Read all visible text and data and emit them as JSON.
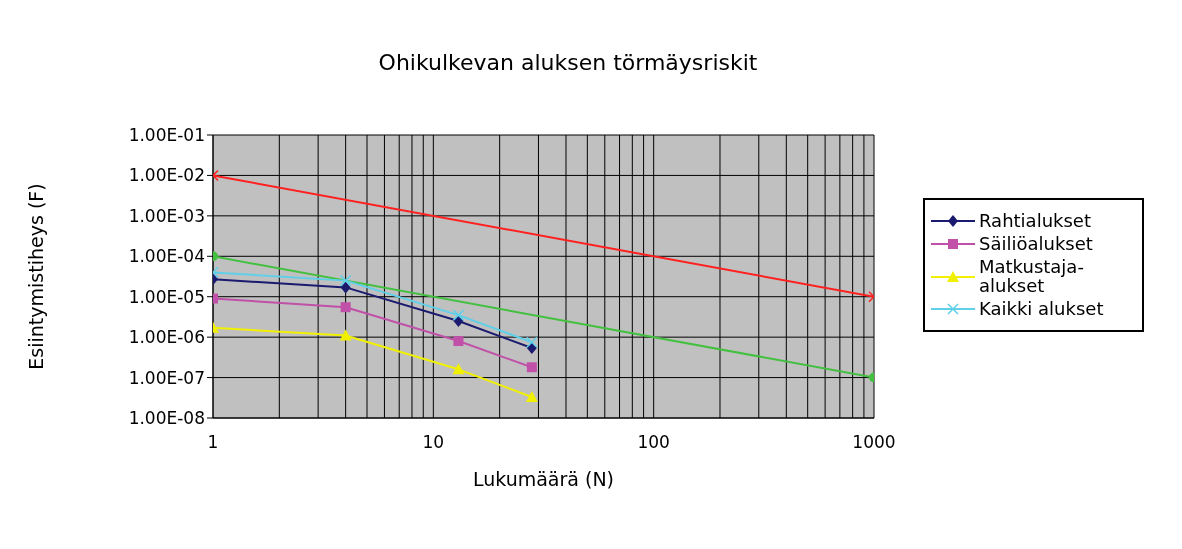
{
  "chart_data": {
    "type": "line",
    "title": "Ohikulkevan aluksen törmäysriskit",
    "xlabel": "Lukumäärä (N)",
    "ylabel": "Esiintymistiheys (F)",
    "log": "xy",
    "grid": true,
    "legend": "right",
    "xlim": [
      1,
      1000
    ],
    "xticks": [
      1,
      {
        "value": 2,
        "label": null
      },
      {
        "value": 3,
        "label": null
      },
      {
        "value": 4,
        "label": null
      },
      {
        "value": 5,
        "label": null
      },
      {
        "value": 6,
        "label": null
      },
      {
        "value": 7,
        "label": null
      },
      {
        "value": 8,
        "label": null
      },
      {
        "value": 9,
        "label": null
      },
      10,
      {
        "value": 20,
        "label": null
      },
      {
        "value": 30,
        "label": null
      },
      {
        "value": 40,
        "label": null
      },
      {
        "value": 50,
        "label": null
      },
      {
        "value": 60,
        "label": null
      },
      {
        "value": 70,
        "label": null
      },
      {
        "value": 80,
        "label": null
      },
      {
        "value": 90,
        "label": null
      },
      100,
      {
        "value": 200,
        "label": null
      },
      {
        "value": 300,
        "label": null
      },
      {
        "value": 400,
        "label": null
      },
      {
        "value": 500,
        "label": null
      },
      {
        "value": 600,
        "label": null
      },
      {
        "value": 700,
        "label": null
      },
      {
        "value": 800,
        "label": null
      },
      {
        "value": 900,
        "label": null
      },
      1000
    ],
    "ylim": [
      1e-08,
      0.1
    ],
    "yticks": [
      {
        "value": 1e-08,
        "label": "1.00E-08"
      },
      {
        "value": 1e-07,
        "label": "1.00E-07"
      },
      {
        "value": 1e-06,
        "label": "1.00E-06"
      },
      {
        "value": 1e-05,
        "label": "1.00E-05"
      },
      {
        "value": 0.0001,
        "label": "1.00E-04"
      },
      {
        "value": 0.001,
        "label": "1.00E-03"
      },
      {
        "value": 0.01,
        "label": "1.00E-02"
      },
      {
        "value": 0.1,
        "label": "1.00E-01"
      }
    ],
    "series": [
      {
        "color": "#ff2020",
        "marker": "cross",
        "x": [
          1,
          1000
        ],
        "values": [
          0.01,
          1e-05
        ]
      },
      {
        "color": "#44c040",
        "marker": "circle",
        "x": [
          1,
          1000
        ],
        "values": [
          0.0001,
          1e-07
        ]
      },
      {
        "name": "Rahtialukset",
        "color": "#1a1a6e",
        "marker": "diamond",
        "x": [
          1,
          4,
          13,
          28
        ],
        "values": [
          2.7e-05,
          1.7e-05,
          2.5e-06,
          5.4e-07
        ]
      },
      {
        "name": "Säiliöalukset",
        "color": "#c050a8",
        "marker": "square",
        "x": [
          1,
          4,
          13,
          28
        ],
        "values": [
          9e-06,
          5.5e-06,
          8e-07,
          1.8e-07
        ]
      },
      {
        "name": "Matkustaja-alukset",
        "color": "#f0f000",
        "marker": "triangle",
        "x": [
          1,
          4,
          13,
          28
        ],
        "values": [
          1.7e-06,
          1.1e-06,
          1.6e-07,
          3.3e-08
        ]
      },
      {
        "name": "Kaikki alukset",
        "color": "#60d0e8",
        "marker": "cross",
        "x": [
          1,
          4,
          13,
          28
        ],
        "values": [
          4e-05,
          2.5e-05,
          3.5e-06,
          7.5e-07
        ]
      }
    ]
  }
}
